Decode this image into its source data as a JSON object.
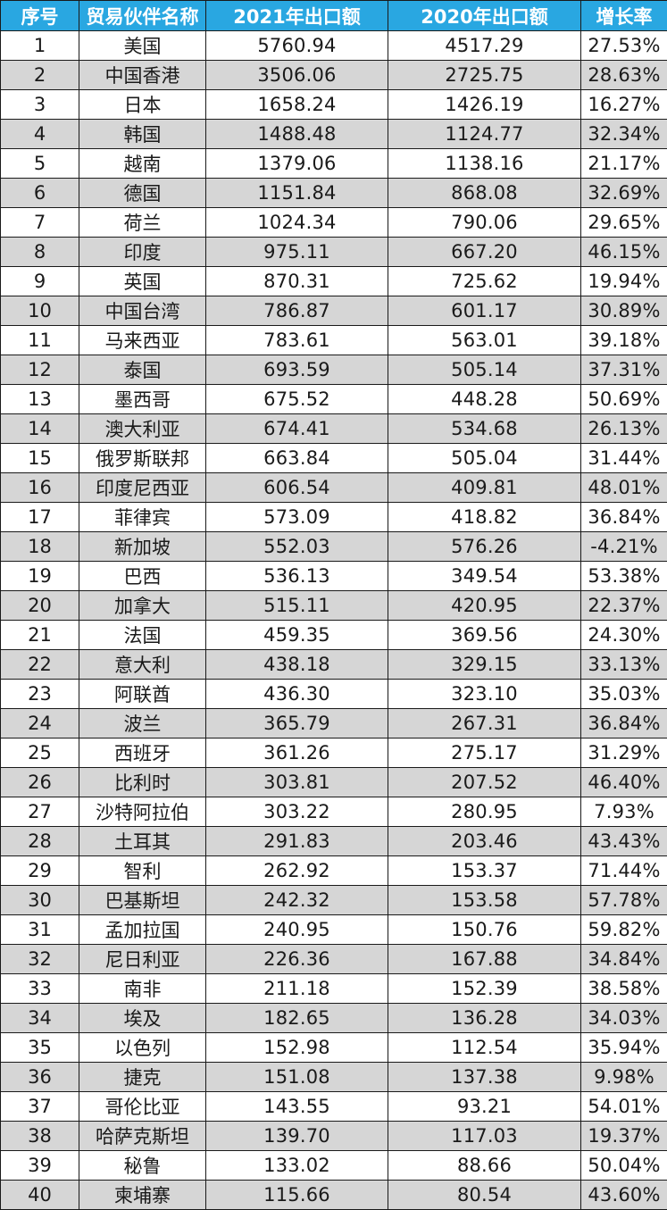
{
  "table": {
    "headers": [
      "序号",
      "贸易伙伴名称",
      "2021年出口额",
      "2020年出口额",
      "增长率"
    ],
    "rows": [
      [
        "1",
        "美国",
        "5760.94",
        "4517.29",
        "27.53%"
      ],
      [
        "2",
        "中国香港",
        "3506.06",
        "2725.75",
        "28.63%"
      ],
      [
        "3",
        "日本",
        "1658.24",
        "1426.19",
        "16.27%"
      ],
      [
        "4",
        "韩国",
        "1488.48",
        "1124.77",
        "32.34%"
      ],
      [
        "5",
        "越南",
        "1379.06",
        "1138.16",
        "21.17%"
      ],
      [
        "6",
        "德国",
        "1151.84",
        "868.08",
        "32.69%"
      ],
      [
        "7",
        "荷兰",
        "1024.34",
        "790.06",
        "29.65%"
      ],
      [
        "8",
        "印度",
        "975.11",
        "667.20",
        "46.15%"
      ],
      [
        "9",
        "英国",
        "870.31",
        "725.62",
        "19.94%"
      ],
      [
        "10",
        "中国台湾",
        "786.87",
        "601.17",
        "30.89%"
      ],
      [
        "11",
        "马来西亚",
        "783.61",
        "563.01",
        "39.18%"
      ],
      [
        "12",
        "泰国",
        "693.59",
        "505.14",
        "37.31%"
      ],
      [
        "13",
        "墨西哥",
        "675.52",
        "448.28",
        "50.69%"
      ],
      [
        "14",
        "澳大利亚",
        "674.41",
        "534.68",
        "26.13%"
      ],
      [
        "15",
        "俄罗斯联邦",
        "663.84",
        "505.04",
        "31.44%"
      ],
      [
        "16",
        "印度尼西亚",
        "606.54",
        "409.81",
        "48.01%"
      ],
      [
        "17",
        "菲律宾",
        "573.09",
        "418.82",
        "36.84%"
      ],
      [
        "18",
        "新加坡",
        "552.03",
        "576.26",
        "-4.21%"
      ],
      [
        "19",
        "巴西",
        "536.13",
        "349.54",
        "53.38%"
      ],
      [
        "20",
        "加拿大",
        "515.11",
        "420.95",
        "22.37%"
      ],
      [
        "21",
        "法国",
        "459.35",
        "369.56",
        "24.30%"
      ],
      [
        "22",
        "意大利",
        "438.18",
        "329.15",
        "33.13%"
      ],
      [
        "23",
        "阿联酋",
        "436.30",
        "323.10",
        "35.03%"
      ],
      [
        "24",
        "波兰",
        "365.79",
        "267.31",
        "36.84%"
      ],
      [
        "25",
        "西班牙",
        "361.26",
        "275.17",
        "31.29%"
      ],
      [
        "26",
        "比利时",
        "303.81",
        "207.52",
        "46.40%"
      ],
      [
        "27",
        "沙特阿拉伯",
        "303.22",
        "280.95",
        "7.93%"
      ],
      [
        "28",
        "土耳其",
        "291.83",
        "203.46",
        "43.43%"
      ],
      [
        "29",
        "智利",
        "262.92",
        "153.37",
        "71.44%"
      ],
      [
        "30",
        "巴基斯坦",
        "242.32",
        "153.58",
        "57.78%"
      ],
      [
        "31",
        "孟加拉国",
        "240.95",
        "150.76",
        "59.82%"
      ],
      [
        "32",
        "尼日利亚",
        "226.36",
        "167.88",
        "34.84%"
      ],
      [
        "33",
        "南非",
        "211.18",
        "152.39",
        "38.58%"
      ],
      [
        "34",
        "埃及",
        "182.65",
        "136.28",
        "34.03%"
      ],
      [
        "35",
        "以色列",
        "152.98",
        "112.54",
        "35.94%"
      ],
      [
        "36",
        "捷克",
        "151.08",
        "137.38",
        "9.98%"
      ],
      [
        "37",
        "哥伦比亚",
        "143.55",
        "93.21",
        "54.01%"
      ],
      [
        "38",
        "哈萨克斯坦",
        "139.70",
        "117.03",
        "19.37%"
      ],
      [
        "39",
        "秘鲁",
        "133.02",
        "88.66",
        "50.04%"
      ],
      [
        "40",
        "柬埔寨",
        "115.66",
        "80.54",
        "43.60%"
      ]
    ]
  },
  "colors": {
    "header_bg": "#29a7e1",
    "header_text": "#ffffff",
    "row_alt_bg": "#d6d6d6",
    "row_bg": "#ffffff",
    "border": "#1a1a1a"
  }
}
